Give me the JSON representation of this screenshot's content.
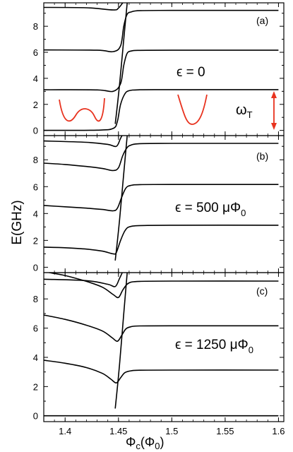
{
  "chart_data": [
    {
      "type": "line",
      "panel_label": "(a)",
      "annotation": "ϵ = 0",
      "annotation_sub": "",
      "xlim": [
        1.38,
        1.605
      ],
      "ylim": [
        -0.4,
        9.8
      ],
      "yticks": [
        "0",
        "2",
        "4",
        "6",
        "8"
      ],
      "series": [
        {
          "x": [
            1.38,
            1.43,
            1.445,
            1.449,
            1.452,
            1.456,
            1.46,
            1.47,
            1.5,
            1.6
          ],
          "y": [
            0.0,
            0.02,
            0.15,
            0.7,
            2.0,
            2.8,
            3.05,
            3.12,
            3.13,
            3.13
          ]
        },
        {
          "x": [
            1.38,
            1.43,
            1.445,
            1.452,
            1.455,
            1.458,
            1.462,
            1.47,
            1.5,
            1.6
          ],
          "y": [
            3.12,
            3.11,
            3.0,
            3.6,
            5.0,
            5.9,
            6.1,
            6.15,
            6.16,
            6.16
          ]
        },
        {
          "x": [
            1.38,
            1.43,
            1.445,
            1.452,
            1.455,
            1.458,
            1.462,
            1.47,
            1.5,
            1.6
          ],
          "y": [
            6.18,
            6.16,
            6.05,
            6.5,
            8.0,
            8.9,
            9.1,
            9.2,
            9.22,
            9.22
          ]
        },
        {
          "x": [
            1.38,
            1.42,
            1.445,
            1.45,
            1.454,
            1.458
          ],
          "y": [
            9.45,
            9.42,
            9.25,
            9.4,
            9.8,
            10.2
          ]
        },
        {
          "x": [
            1.447,
            1.451,
            1.455,
            1.459
          ],
          "y": [
            0.5,
            3.5,
            7.0,
            10.5
          ]
        }
      ]
    },
    {
      "type": "line",
      "panel_label": "(b)",
      "annotation": "ϵ = 500 μΦ",
      "annotation_sub": "0",
      "xlim": [
        1.38,
        1.605
      ],
      "ylim": [
        -0.4,
        9.8
      ],
      "yticks": [
        "0",
        "2",
        "4",
        "6",
        "8"
      ],
      "series": [
        {
          "x": [
            1.38,
            1.4,
            1.42,
            1.435,
            1.445,
            1.448,
            1.452,
            1.456,
            1.46,
            1.47,
            1.5,
            1.6
          ],
          "y": [
            1.5,
            1.45,
            1.35,
            1.2,
            1.0,
            1.1,
            2.0,
            2.7,
            3.0,
            3.1,
            3.13,
            3.13
          ]
        },
        {
          "x": [
            1.38,
            1.4,
            1.42,
            1.435,
            1.445,
            1.449,
            1.453,
            1.457,
            1.462,
            1.47,
            1.5,
            1.6
          ],
          "y": [
            4.6,
            4.5,
            4.4,
            4.3,
            4.2,
            4.4,
            5.2,
            5.9,
            6.1,
            6.15,
            6.16,
            6.16
          ]
        },
        {
          "x": [
            1.38,
            1.4,
            1.42,
            1.435,
            1.445,
            1.45,
            1.454,
            1.458,
            1.462,
            1.47,
            1.5,
            1.6
          ],
          "y": [
            7.75,
            7.65,
            7.5,
            7.35,
            7.2,
            7.4,
            8.3,
            8.9,
            9.1,
            9.2,
            9.22,
            9.22
          ]
        },
        {
          "x": [
            1.38,
            1.42,
            1.44,
            1.448,
            1.452,
            1.456
          ],
          "y": [
            9.4,
            9.3,
            9.15,
            9.0,
            9.6,
            10.2
          ]
        },
        {
          "x": [
            1.447,
            1.451,
            1.455,
            1.459
          ],
          "y": [
            0.5,
            3.5,
            7.0,
            10.5
          ]
        }
      ]
    },
    {
      "type": "line",
      "panel_label": "(c)",
      "annotation": "ϵ = 1250 μΦ",
      "annotation_sub": "0",
      "xlim": [
        1.38,
        1.605
      ],
      "ylim": [
        -0.4,
        9.8
      ],
      "yticks": [
        "0",
        "2",
        "4",
        "6",
        "8"
      ],
      "xticks": [
        "1.4",
        "1.45",
        "1.5",
        "1.55",
        "1.6"
      ],
      "xlabel": "Φ",
      "xlabel_sub": "c",
      "xlabel_tail": "(Φ",
      "xlabel_sub2": "0",
      "xlabel_end": ")",
      "series": [
        {
          "x": [
            1.38,
            1.38,
            1.6
          ],
          "y": [
            0.0,
            0.0,
            0.0
          ]
        },
        {
          "x": [
            1.38,
            1.4,
            1.42,
            1.435,
            1.443,
            1.448,
            1.452,
            1.456,
            1.462,
            1.47,
            1.5,
            1.6
          ],
          "y": [
            3.8,
            3.6,
            3.3,
            2.9,
            2.5,
            2.25,
            2.6,
            2.95,
            3.08,
            3.12,
            3.13,
            3.13
          ]
        },
        {
          "x": [
            1.38,
            1.4,
            1.42,
            1.435,
            1.444,
            1.449,
            1.453,
            1.457,
            1.462,
            1.47,
            1.5,
            1.6
          ],
          "y": [
            6.9,
            6.6,
            6.2,
            5.8,
            5.35,
            5.1,
            5.5,
            5.95,
            6.1,
            6.15,
            6.16,
            6.16
          ]
        },
        {
          "x": [
            1.385,
            1.4,
            1.42,
            1.435,
            1.445,
            1.45,
            1.454,
            1.458,
            1.462,
            1.47,
            1.5,
            1.6
          ],
          "y": [
            9.8,
            9.6,
            9.2,
            8.8,
            8.3,
            8.1,
            8.6,
            9.0,
            9.15,
            9.2,
            9.22,
            9.22
          ]
        },
        {
          "x": [
            1.38,
            1.42,
            1.44,
            1.447,
            1.451,
            1.456
          ],
          "y": [
            9.35,
            9.25,
            9.0,
            8.85,
            9.4,
            10.2
          ]
        },
        {
          "x": [
            1.447,
            1.451,
            1.455,
            1.459
          ],
          "y": [
            0.5,
            3.5,
            7.0,
            10.5
          ]
        }
      ]
    }
  ],
  "ylabel": "E(GHz)",
  "omega_label": "ω",
  "omega_sub": "T",
  "colors": {
    "curve": "#000000",
    "annotation": "#e8321e"
  }
}
